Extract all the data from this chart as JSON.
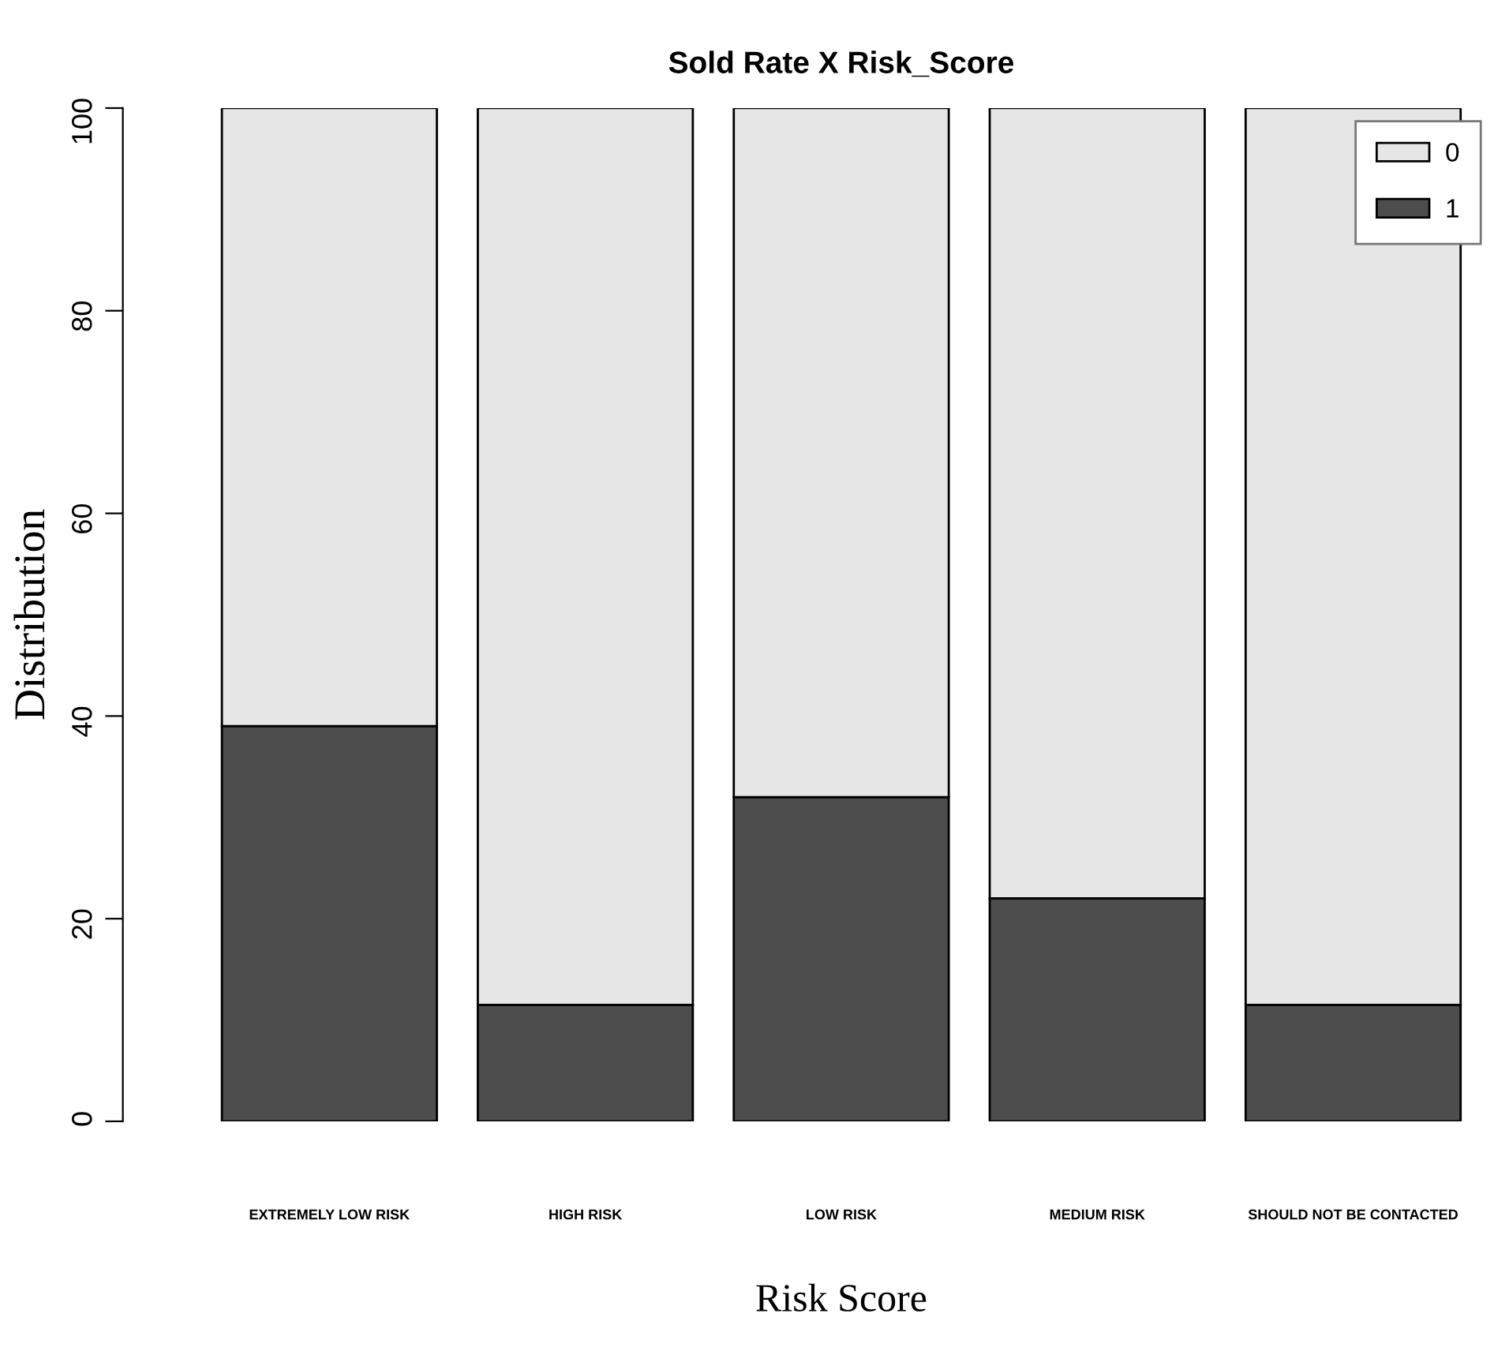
{
  "chart_data": {
    "type": "bar",
    "title": "Sold Rate X Risk_Score",
    "xlabel": "Risk Score",
    "ylabel": "Distribution",
    "categories": [
      "EXTREMELY LOW RISK",
      "HIGH RISK",
      "LOW RISK",
      "MEDIUM RISK",
      "SHOULD NOT BE CONTACTED"
    ],
    "stacked": true,
    "series": [
      {
        "name": "1",
        "color": "#4d4d4d",
        "values": [
          39,
          11.5,
          32,
          22,
          11.5
        ]
      },
      {
        "name": "0",
        "color": "#e6e6e6",
        "values": [
          61,
          88.5,
          68,
          78,
          88.5
        ]
      }
    ],
    "ylim": [
      0,
      100
    ],
    "yticks": [
      0,
      20,
      40,
      60,
      80,
      100
    ],
    "grid": false,
    "legend": "top right"
  }
}
